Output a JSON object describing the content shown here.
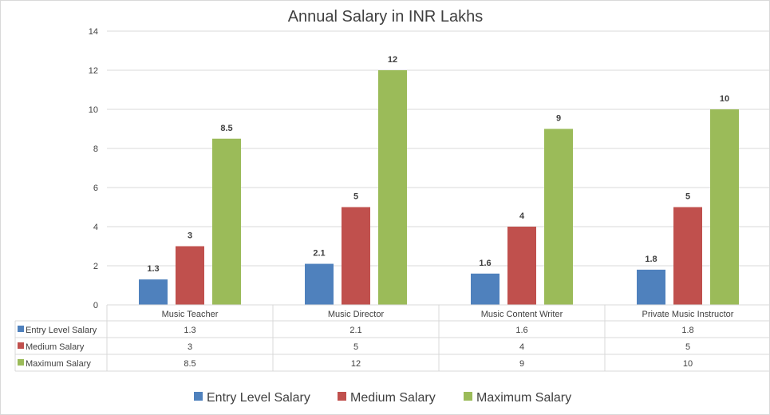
{
  "chart_data": {
    "type": "bar",
    "title": "Annual Salary in INR Lakhs",
    "categories": [
      "Music Teacher",
      "Music Director",
      "Music Content Writer",
      "Private Music Instructor"
    ],
    "series": [
      {
        "name": "Entry Level Salary",
        "color": "#4f81bd",
        "values": [
          1.3,
          2.1,
          1.6,
          1.8
        ],
        "labels": [
          "1.3",
          "2.1",
          "1.6",
          "1.8"
        ]
      },
      {
        "name": "Medium Salary",
        "color": "#c0504d",
        "values": [
          3,
          5,
          4,
          5
        ],
        "labels": [
          "3",
          "5",
          "4",
          "5"
        ]
      },
      {
        "name": "Maximum Salary",
        "color": "#9bbb59",
        "values": [
          8.5,
          12,
          9,
          10
        ],
        "labels": [
          "8.5",
          "12",
          "9",
          "10"
        ]
      }
    ],
    "ylim": [
      0,
      14
    ],
    "yticks": [
      "0",
      "2",
      "4",
      "6",
      "8",
      "10",
      "12",
      "14"
    ],
    "grid": true,
    "data_table": true,
    "legend": "bottom"
  }
}
